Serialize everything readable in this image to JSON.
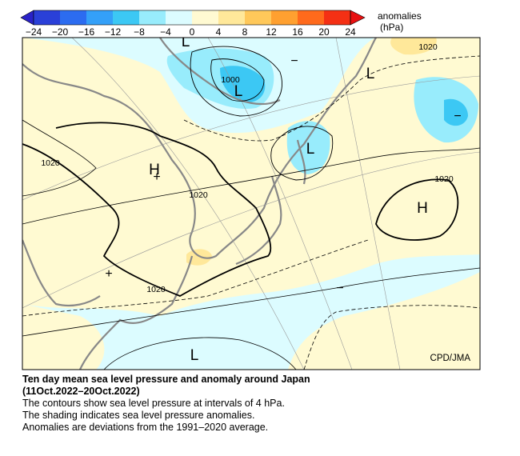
{
  "colorbar": {
    "ticks": [
      "−24",
      "−20",
      "−16",
      "−12",
      "−8",
      "−4",
      "0",
      "4",
      "8",
      "12",
      "16",
      "20",
      "24"
    ],
    "title": "anomalies",
    "unit": "(hPa)"
  },
  "map": {
    "contour_labels": [
      "1020",
      "1000",
      "1020",
      "1020",
      "1020",
      "1020"
    ],
    "centers": [
      "L",
      "L",
      "L",
      "L",
      "H",
      "H",
      "L"
    ],
    "anomaly_signs": [
      "−",
      "−",
      "−",
      "+",
      "+"
    ],
    "credit": "CPD/JMA"
  },
  "caption": {
    "title": "Ten day mean sea level pressure and anomaly around Japan",
    "period": "(11Oct.2022–20Oct.2022)",
    "lines": [
      "The contours show sea level pressure at intervals of 4 hPa.",
      "The shading indicates sea level pressure anomalies.",
      "Anomalies are deviations from the 1991–2020 average."
    ]
  }
}
